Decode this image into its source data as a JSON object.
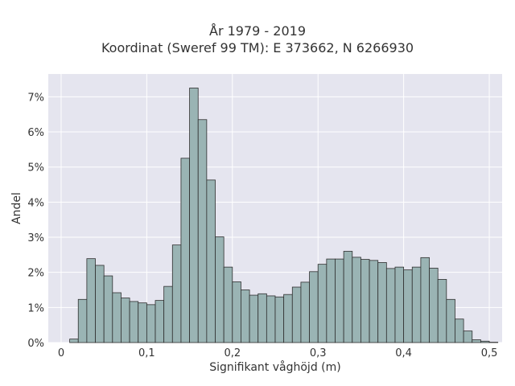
{
  "chart_data": {
    "type": "bar",
    "title_line1": "År 1979 - 2019",
    "title_line2": "Koordinat (Sweref 99 TM): E 373662, N 6266930",
    "xlabel": "Signifikant våghöjd (m)",
    "ylabel": "Andel",
    "xlim": [
      -0.015,
      0.515
    ],
    "ylim": [
      0,
      7.65
    ],
    "x_ticks": [
      {
        "value": 0,
        "label": "0"
      },
      {
        "value": 0.1,
        "label": "0,1"
      },
      {
        "value": 0.2,
        "label": "0,2"
      },
      {
        "value": 0.3,
        "label": "0,3"
      },
      {
        "value": 0.4,
        "label": "0,4"
      },
      {
        "value": 0.5,
        "label": "0,5"
      }
    ],
    "y_ticks": [
      {
        "value": 0,
        "label": "0%"
      },
      {
        "value": 1,
        "label": "1%"
      },
      {
        "value": 2,
        "label": "2%"
      },
      {
        "value": 3,
        "label": "3%"
      },
      {
        "value": 4,
        "label": "4%"
      },
      {
        "value": 5,
        "label": "5%"
      },
      {
        "value": 6,
        "label": "6%"
      },
      {
        "value": 7,
        "label": "7%"
      }
    ],
    "bin_width": 0.01,
    "bin_start": 0.01,
    "values": [
      0.1,
      1.23,
      2.39,
      2.2,
      1.9,
      1.42,
      1.27,
      1.17,
      1.13,
      1.08,
      1.2,
      1.6,
      2.78,
      5.25,
      7.25,
      6.35,
      4.63,
      3.01,
      2.15,
      1.73,
      1.5,
      1.35,
      1.39,
      1.33,
      1.3,
      1.37,
      1.58,
      1.72,
      2.02,
      2.23,
      2.38,
      2.38,
      2.6,
      2.43,
      2.37,
      2.34,
      2.28,
      2.11,
      2.15,
      2.07,
      2.15,
      2.42,
      2.12,
      1.8,
      1.23,
      0.67,
      0.33,
      0.08,
      0.04,
      0.01
    ],
    "colors": {
      "bar_fill": "#9ab4b4",
      "bar_stroke": "#2f2f2f",
      "plot_bg": "#e5e5ef",
      "grid": "#ffffff"
    },
    "grid": true
  }
}
